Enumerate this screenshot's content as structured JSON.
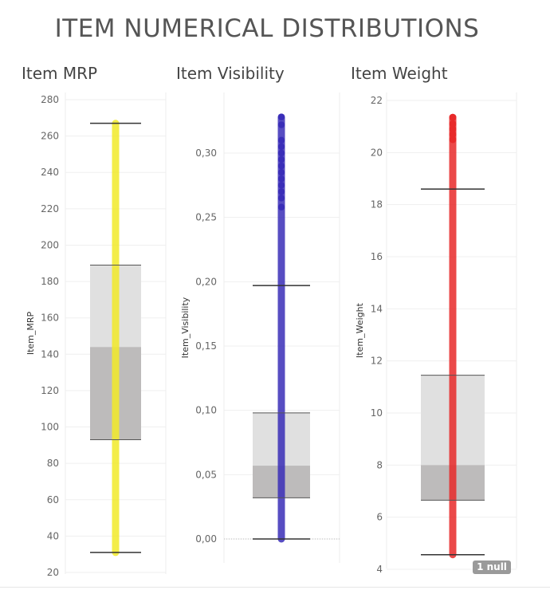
{
  "page": {
    "title": "ITEM NUMERICAL DISTRIBUTIONS"
  },
  "chart_data": [
    {
      "type": "boxplot",
      "title": "Item MRP",
      "ylabel": "Item_MRP",
      "ylim": [
        20,
        280
      ],
      "yticks": [
        "20",
        "40",
        "60",
        "80",
        "100",
        "120",
        "140",
        "160",
        "180",
        "200",
        "220",
        "240",
        "260",
        "280"
      ],
      "whisker_low": 31,
      "q1": 93,
      "median": 144,
      "q3": 189,
      "whisker_high": 267,
      "points_range": [
        31,
        267
      ],
      "color": "#f2ea2a"
    },
    {
      "type": "boxplot",
      "title": "Item Visibility",
      "ylabel": "Item_Visibility",
      "ylim": [
        -0.012,
        0.345
      ],
      "yticks": [
        "0,00",
        "0,05",
        "0,10",
        "0,15",
        "0,20",
        "0,25",
        "0,30"
      ],
      "whisker_low": 0.0,
      "q1": 0.032,
      "median": 0.057,
      "q3": 0.098,
      "whisker_high": 0.197,
      "points_range": [
        0.0,
        0.328
      ],
      "color": "#3a2eb8"
    },
    {
      "type": "boxplot",
      "title": "Item Weight",
      "ylabel": "Item_Weight",
      "ylim": [
        4,
        22
      ],
      "yticks": [
        "4",
        "6",
        "8",
        "10",
        "12",
        "14",
        "16",
        "18",
        "20",
        "22"
      ],
      "whisker_low": 4.56,
      "q1": 6.65,
      "median": 8.0,
      "q3": 11.45,
      "whisker_high": 18.6,
      "points_range": [
        4.56,
        21.35
      ],
      "color": "#e82a2a",
      "null_indicator": "1 null"
    }
  ]
}
